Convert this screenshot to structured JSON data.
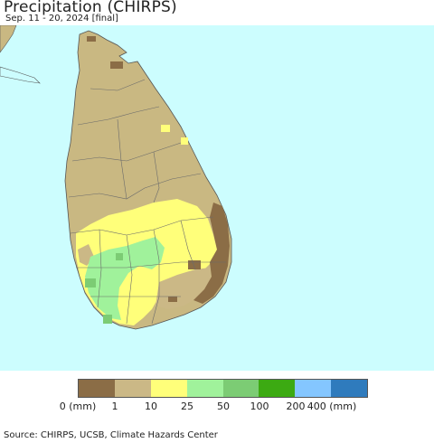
{
  "header": {
    "title": "Precipitation (CHIRPS)",
    "subtitle": "Sep. 11 - 20, 2024 [final]"
  },
  "colors": {
    "ocean": "#ccfdfe",
    "land_outside": "#c9b882",
    "border": "#5a5a5a"
  },
  "legend": {
    "colors": [
      "#8b6d46",
      "#cbb886",
      "#ffff7a",
      "#a0f29b",
      "#7ccc74",
      "#3caa12",
      "#84c6ff",
      "#2f7bbd"
    ],
    "labels": [
      "0 (mm)",
      "1",
      "10",
      "25",
      "50",
      "100",
      "200",
      "400 (mm)"
    ]
  },
  "footer": {
    "source": "Source: CHIRPS, UCSB, Climate Hazards Center"
  }
}
